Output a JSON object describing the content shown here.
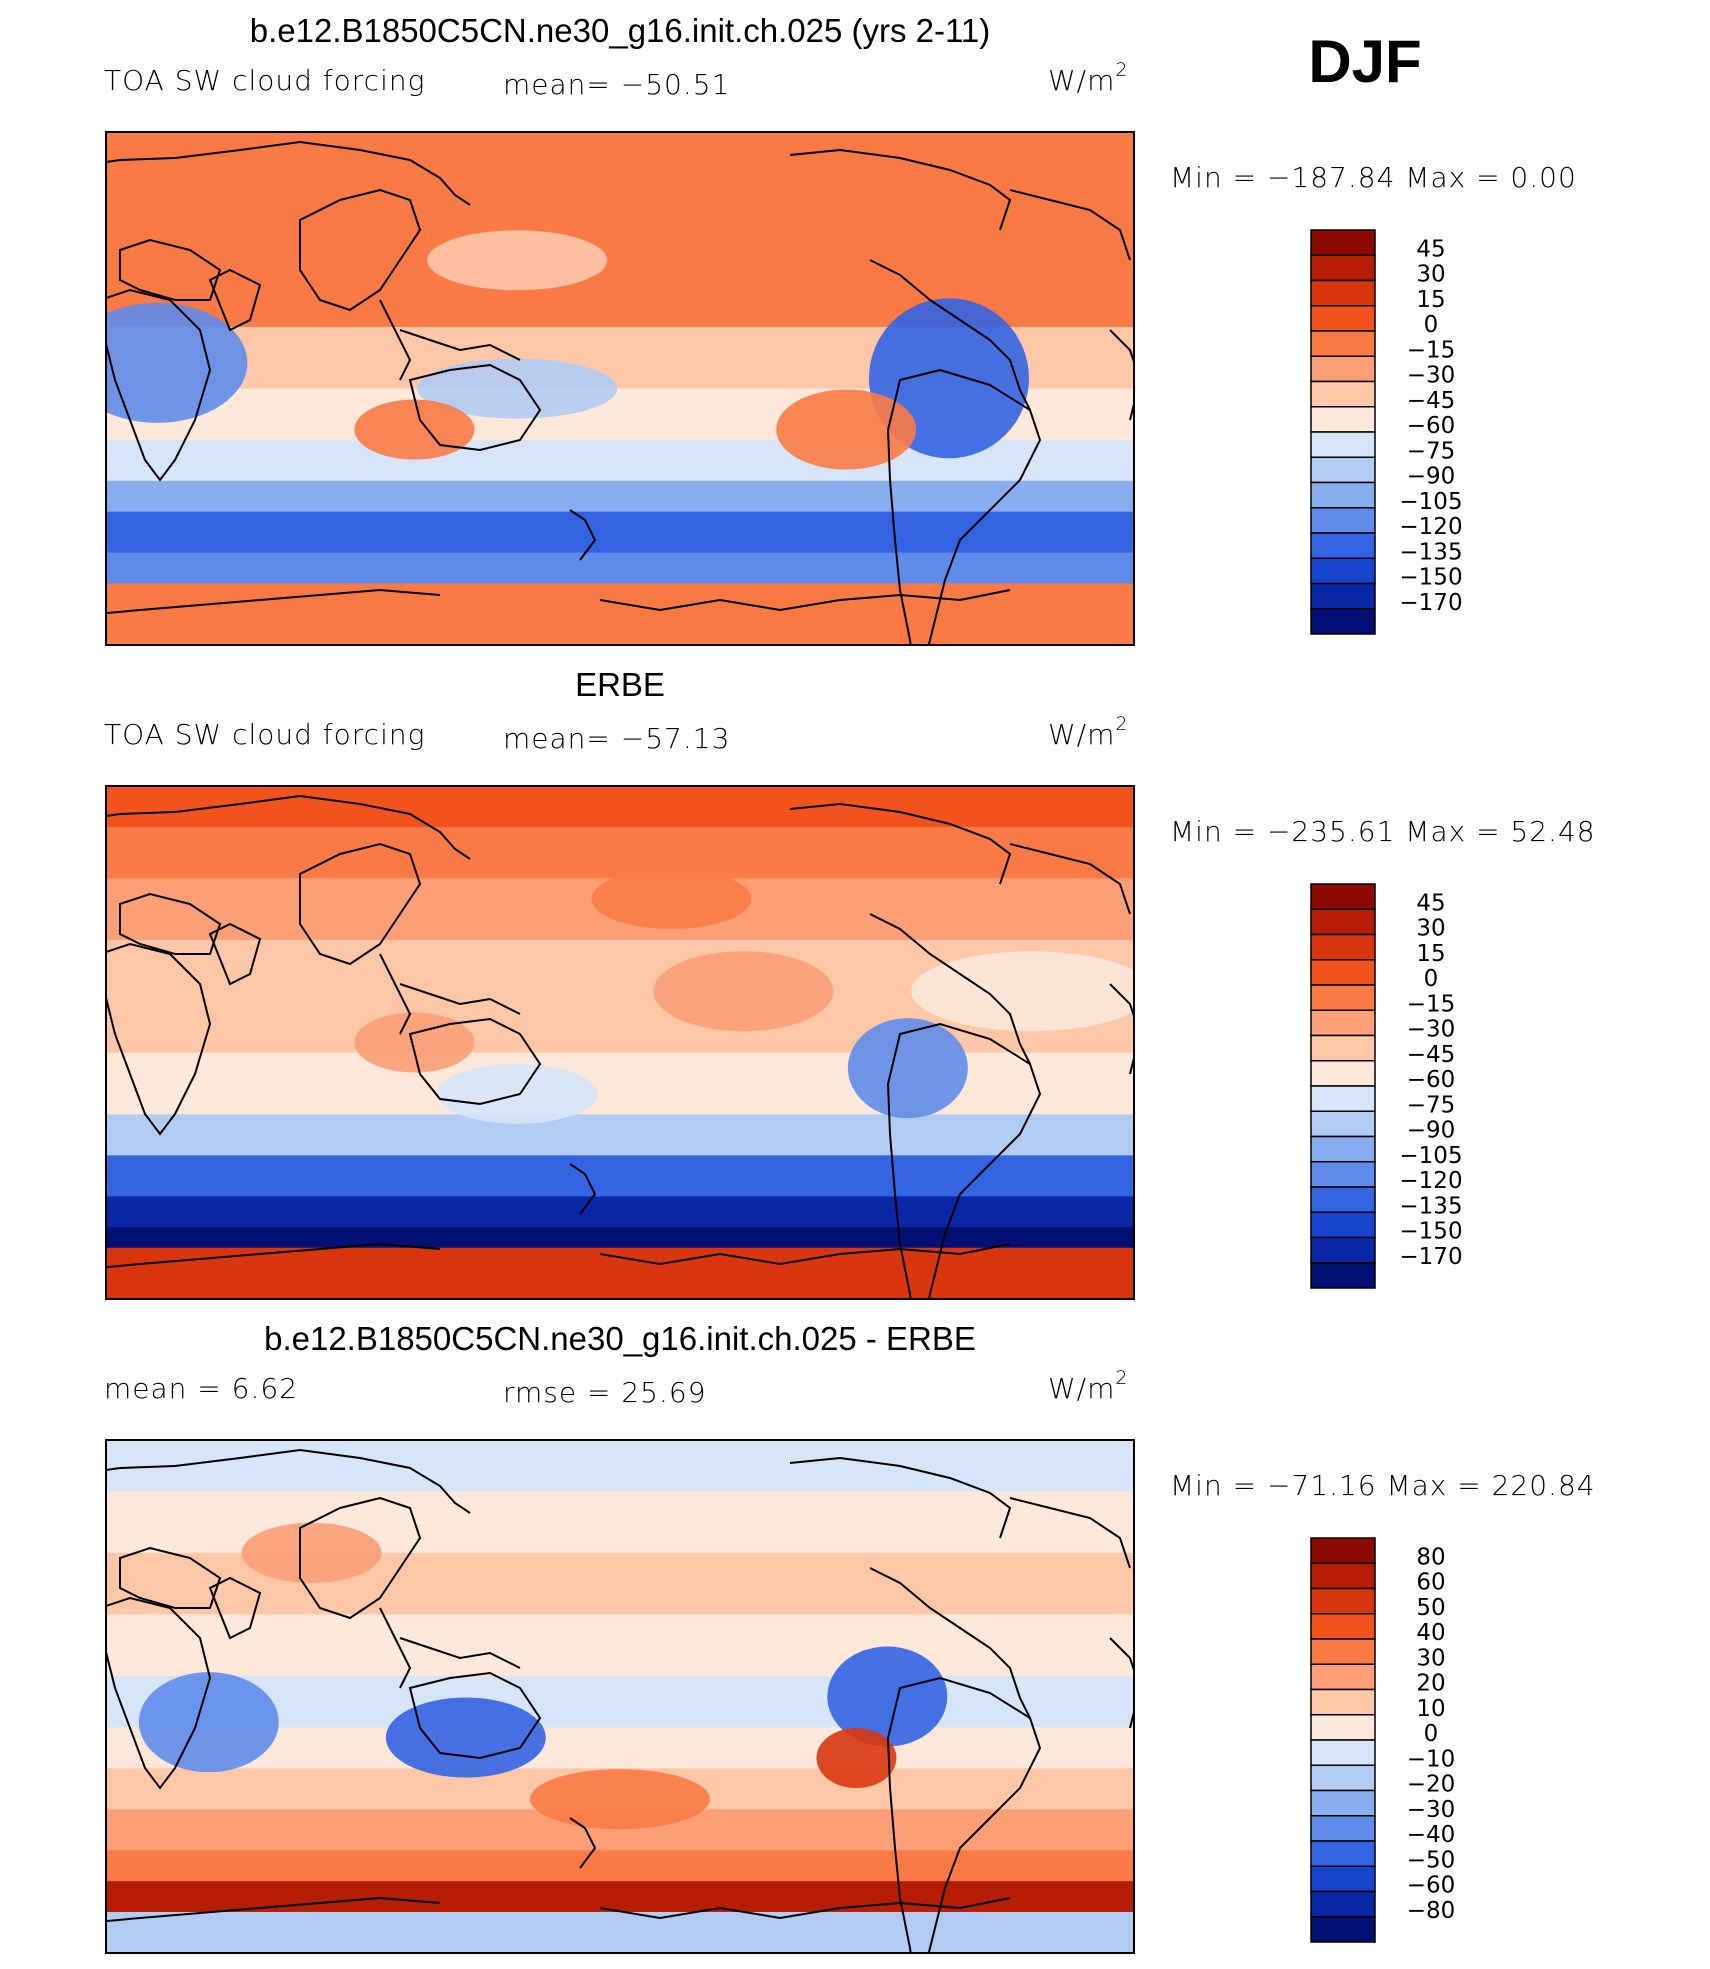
{
  "season_label": "DJF",
  "chart_data": [
    {
      "type": "heatmap",
      "title": "b.e12.B1850C5CN.ne30_g16.init.ch.025 (yrs 2-11)",
      "variable": "TOA SW cloud forcing",
      "units": "W/m",
      "units_sup": "2",
      "stat_left": "",
      "stat_mid": "mean=  −50.51",
      "minmax": "Min  =  −187.84  Max  =     0.00",
      "colorbar_levels": [
        "45",
        "30",
        "15",
        "0",
        "−15",
        "−30",
        "−45",
        "−60",
        "−75",
        "−90",
        "−105",
        "−120",
        "−135",
        "−150",
        "−170"
      ],
      "colorbar_colors": [
        "#8c0a00",
        "#b61d05",
        "#d93610",
        "#f2531d",
        "#f97a45",
        "#fc9f77",
        "#fdc7a8",
        "#fde8da",
        "#d6e5f7",
        "#b1cbf3",
        "#89aef0",
        "#5f8cea",
        "#3364e2",
        "#1744cf",
        "#0a27a6",
        "#020f73"
      ]
    },
    {
      "type": "heatmap",
      "title": "ERBE",
      "variable": "TOA SW cloud forcing",
      "units": "W/m",
      "units_sup": "2",
      "stat_left": "",
      "stat_mid": "mean=  −57.13",
      "minmax": "Min  =  −235.61  Max  =    52.48",
      "colorbar_levels": [
        "45",
        "30",
        "15",
        "0",
        "−15",
        "−30",
        "−45",
        "−60",
        "−75",
        "−90",
        "−105",
        "−120",
        "−135",
        "−150",
        "−170"
      ],
      "colorbar_colors": [
        "#8c0a00",
        "#b61d05",
        "#d93610",
        "#f2531d",
        "#f97a45",
        "#fc9f77",
        "#fdc7a8",
        "#fde8da",
        "#d6e5f7",
        "#b1cbf3",
        "#89aef0",
        "#5f8cea",
        "#3364e2",
        "#1744cf",
        "#0a27a6",
        "#020f73"
      ]
    },
    {
      "type": "heatmap",
      "title": "b.e12.B1850C5CN.ne30_g16.init.ch.025 - ERBE",
      "variable": "",
      "units": "W/m",
      "units_sup": "2",
      "stat_left": "mean  =     6.62",
      "stat_mid": "rmse  =    25.69",
      "minmax": "Min  =  −71.16  Max  =  220.84",
      "colorbar_levels": [
        "80",
        "60",
        "50",
        "40",
        "30",
        "20",
        "10",
        "0",
        "−10",
        "−20",
        "−30",
        "−40",
        "−50",
        "−60",
        "−80"
      ],
      "colorbar_colors": [
        "#8c0a00",
        "#b61d05",
        "#d93610",
        "#f2531d",
        "#f97a45",
        "#fc9f77",
        "#fdc7a8",
        "#fde8da",
        "#d6e5f7",
        "#b1cbf3",
        "#89aef0",
        "#5f8cea",
        "#3364e2",
        "#1744cf",
        "#0a27a6",
        "#020f73"
      ]
    }
  ]
}
